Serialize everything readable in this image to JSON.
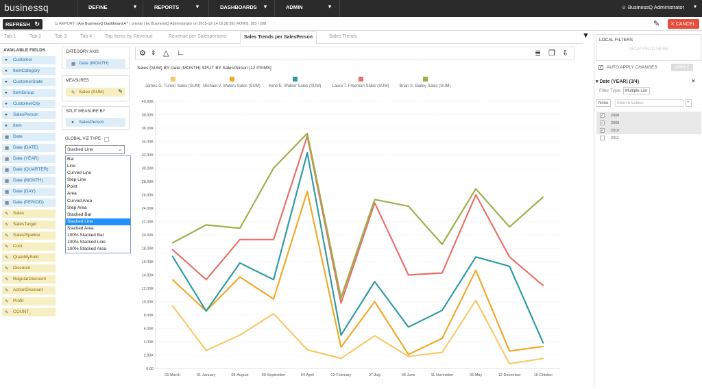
{
  "brand": "businessq",
  "nav": [
    {
      "label": "DEFINE"
    },
    {
      "label": "REPORTS"
    },
    {
      "label": "DASHBOARDS"
    },
    {
      "label": "ADMIN"
    }
  ],
  "user": "BusinessQ Administrator",
  "toolbar": {
    "refresh": "REFRESH",
    "report_label": "REPORT:",
    "report_name": "I Am BusinessQ Dashboard A *",
    "visibility": "private",
    "by": "by BusinessQ Administrator on 2015-12-14 16:28:28",
    "rows": "ROWS: 183 / 208",
    "cancel": "CANCEL"
  },
  "tabs": [
    "Tab 1",
    "Tab 2",
    "Tab 3",
    "Tab 4",
    "Top Items by Revenue",
    "Revenue per Salespersons",
    "Sales Trends per SalesPerson",
    "Sales Trends"
  ],
  "active_tab": "Sales Trends per SalesPerson",
  "available_fields": {
    "title": "AVAILABLE FIELDS",
    "dimensions": [
      "Customer",
      "ItemCategory",
      "CustomerState",
      "ItemGroup",
      "CustomerCity",
      "SalesPerson",
      "Item",
      "Date",
      "Date (DATE)",
      "Date (YEAR)",
      "Date (QUARTER)",
      "Date (MONTH)",
      "Date (DAY)",
      "Date (PERIOD)"
    ],
    "measures": [
      "Sales",
      "SalesTarget",
      "SalesPipeline",
      "Cost",
      "QuantitySold",
      "Discount",
      "RegularDiscount",
      "ActionDiscount",
      "Profit",
      "COUNT_"
    ]
  },
  "config": {
    "category_axis_title": "CATEGORY AXIS",
    "category_axis_value": "Date (MONTH)",
    "measures_title": "MEASURES",
    "measures_value": "Sales (SUM)",
    "split_title": "SPLIT MEASURE BY",
    "split_value": "SalesPerson",
    "viz_title": "GLOBAL VIZ TYPE",
    "viz_selected": "Stacked Line",
    "viz_options": [
      "Bar",
      "Line",
      "Curved Line",
      "Step Line",
      "Point",
      "Area",
      "Curved Area",
      "Step Area",
      "Stacked Bar",
      "Stacked Line",
      "Stacked Area",
      "100% Stacked Bar",
      "100% Stacked Line",
      "100% Stacked Area"
    ]
  },
  "icons": {
    "gear": "gear-icon",
    "sort": "sort-icon",
    "triangle": "triangle-icon",
    "axes": "axes-icon",
    "database": "database-icon",
    "copy": "copy-icon",
    "download": "download-icon",
    "funnel": "funnel-icon",
    "pencil": "pencil-icon",
    "refresh": "refresh-icon"
  },
  "chart_data": {
    "type": "line",
    "title": "Sales (SUM) BY Date (MONTH) SPLIT BY SalesPerson [12 ITEMS]",
    "stacked": true,
    "categories": [
      "03-March",
      "01-January",
      "08-August",
      "09-September",
      "04-April",
      "02-February",
      "07-July",
      "06-June",
      "11-November",
      "05-May",
      "12-December",
      "10-October"
    ],
    "ylim": [
      0,
      40000
    ],
    "yticks": [
      "0.00",
      "2.00K",
      "4.00K",
      "6.00K",
      "8.00K",
      "10.00K",
      "12.00K",
      "14.00K",
      "16.00K",
      "18.00K",
      "20.00K",
      "22.00K",
      "24.00K",
      "26.00K",
      "28.00K",
      "30.00K",
      "32.00K",
      "34.00K",
      "36.00K",
      "38.00K",
      "40.00K"
    ],
    "grid": true,
    "legend": "top",
    "series": [
      {
        "name": "James G. Turner Sales (SUM)",
        "color": "#f7c96a",
        "values": [
          9400,
          2700,
          5000,
          8200,
          2800,
          1500,
          4900,
          1800,
          2400,
          10200,
          700,
          1500
        ]
      },
      {
        "name": "Michael V. Waters Sales (SUM)",
        "color": "#f0a92a",
        "values": [
          13300,
          8600,
          13700,
          10400,
          26500,
          3200,
          10000,
          2100,
          4500,
          14700,
          2600,
          3300
        ]
      },
      {
        "name": "Irene E. Walker Sales (SUM)",
        "color": "#2e9ca0",
        "values": [
          16800,
          8600,
          15800,
          13300,
          32300,
          5000,
          13000,
          6200,
          8700,
          16700,
          15300,
          3800
        ]
      },
      {
        "name": "Laura T. Freeman Sales (SUM)",
        "color": "#e8706a",
        "values": [
          17800,
          13300,
          19300,
          19300,
          34800,
          9800,
          24800,
          14000,
          14300,
          26000,
          16700,
          12400
        ]
      },
      {
        "name": "Brian S. Bailey Sales (SUM)",
        "color": "#9cb04a",
        "values": [
          18800,
          21500,
          21000,
          30000,
          35200,
          10600,
          25300,
          24300,
          18600,
          26900,
          21200,
          25700
        ]
      }
    ]
  },
  "local_filters": {
    "title": "LOCAL FILTERS",
    "drop": "DROP FIELD HERE",
    "auto_apply": "AUTO APPLY CHANGES",
    "apply": "APPLY",
    "filter_title": "Date (YEAR) (3/4)",
    "filter_type_label": "Filter Type:",
    "filter_type": "Multiple List",
    "none": "None",
    "search_placeholder": "Search Values",
    "values": [
      {
        "label": "2008",
        "checked": true
      },
      {
        "label": "2009",
        "checked": true
      },
      {
        "label": "2010",
        "checked": true
      },
      {
        "label": "2011",
        "checked": false
      }
    ]
  }
}
